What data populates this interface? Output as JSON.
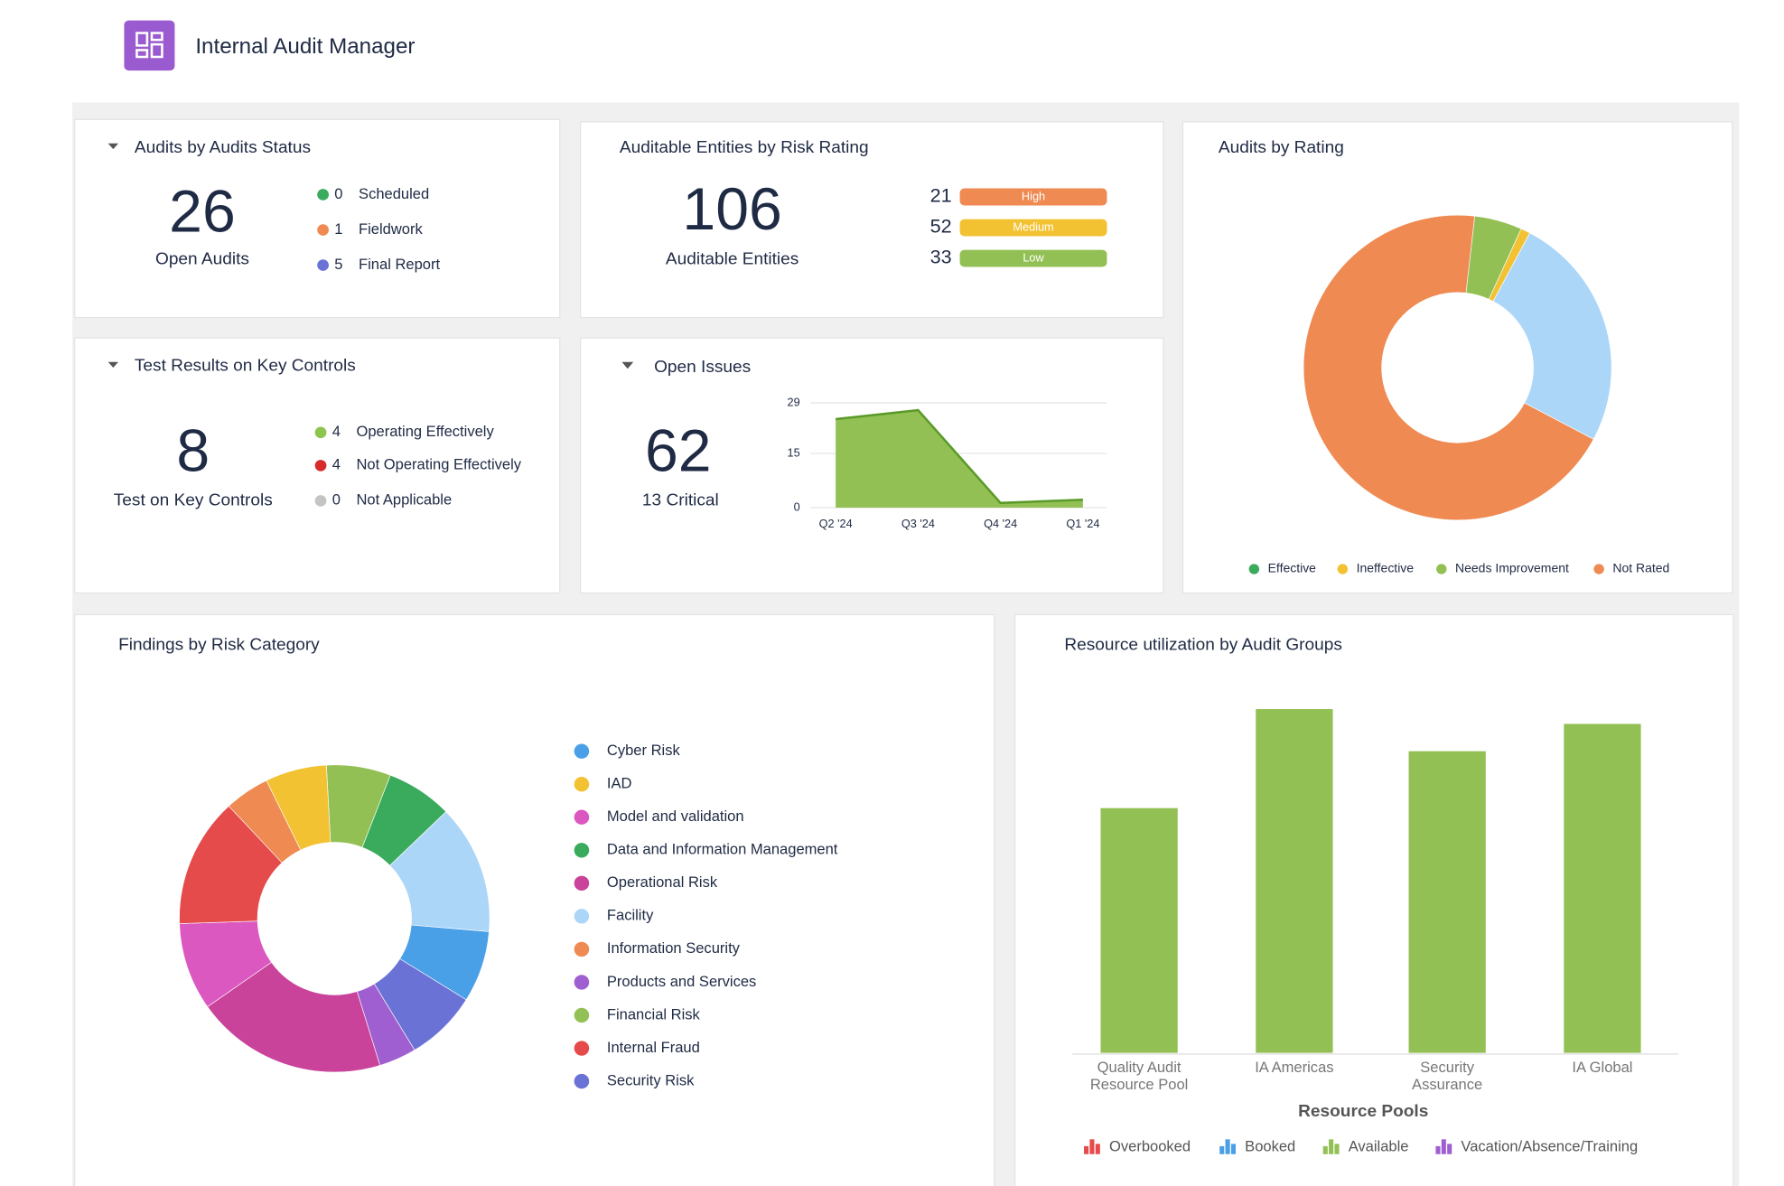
{
  "header": {
    "title": "Internal Audit Manager"
  },
  "audits_status": {
    "title": "Audits by Audits Status",
    "total": 26,
    "total_label": "Open Audits",
    "items": [
      {
        "count": 0,
        "label": "Scheduled",
        "color": "#3aaa5c"
      },
      {
        "count": 1,
        "label": "Fieldwork",
        "color": "#ef8a52"
      },
      {
        "count": 5,
        "label": "Final Report",
        "color": "#6b72d6"
      }
    ]
  },
  "risk_rating": {
    "title": "Auditable Entities by Risk Rating",
    "total": 106,
    "total_label": "Auditable Entities",
    "items": [
      {
        "count": 21,
        "label": "High",
        "color": "#ef8a52"
      },
      {
        "count": 52,
        "label": "Medium",
        "color": "#f2c232"
      },
      {
        "count": 33,
        "label": "Low",
        "color": "#93c054"
      }
    ]
  },
  "key_controls": {
    "title": "Test Results on Key Controls",
    "total": 8,
    "total_label": "Test on Key Controls",
    "items": [
      {
        "count": 4,
        "label": "Operating Effectively",
        "color": "#8cc44e"
      },
      {
        "count": 4,
        "label": "Not Operating Effectively",
        "color": "#d62b2b"
      },
      {
        "count": 0,
        "label": "Not Applicable",
        "color": "#c4c4c4"
      }
    ]
  },
  "open_issues": {
    "title": "Open Issues",
    "total": 62,
    "subtitle": "13 Critical",
    "chart": {
      "type": "area",
      "categories": [
        "Q2 '24",
        "Q3 '24",
        "Q4 '24",
        "Q1 '24"
      ],
      "values": [
        24.5,
        27,
        1.3,
        2.2
      ],
      "color": "#93c054",
      "ylim": [
        0,
        29
      ],
      "yticks": [
        0,
        15,
        29
      ],
      "grid": true
    }
  },
  "audits_by_rating": {
    "title": "Audits by Rating",
    "chart": {
      "type": "donut",
      "series": [
        {
          "name": "Effective",
          "color": "#3aaa5c",
          "value": 0
        },
        {
          "name": "Ineffective",
          "color": "#f2c232",
          "value": 1
        },
        {
          "name": "Needs Improvement",
          "color": "#93c054",
          "value": 5
        },
        {
          "name": "Not Rated",
          "color": "#ef8a52",
          "value": 69
        },
        {
          "name": null,
          "color": "#acd6f8",
          "value": 25
        }
      ]
    }
  },
  "findings": {
    "title": "Findings by Risk Category",
    "chart": {
      "type": "donut",
      "series": [
        {
          "name": "Cyber Risk",
          "color": "#4aa0e6",
          "value": 7.5
        },
        {
          "name": "IAD",
          "color": "#f2c232",
          "value": 6.4
        },
        {
          "name": "Model and validation",
          "color": "#db58c0",
          "value": 9.2
        },
        {
          "name": "Data and Information Management",
          "color": "#3aaa5c",
          "value": 6.9
        },
        {
          "name": "Operational Risk",
          "color": "#c9439b",
          "value": 20
        },
        {
          "name": "Facility",
          "color": "#acd6f8",
          "value": 13.6
        },
        {
          "name": "Information Security",
          "color": "#ef8a52",
          "value": 4.7
        },
        {
          "name": "Products and Services",
          "color": "#a05fd0",
          "value": 3.9
        },
        {
          "name": "Financial Risk",
          "color": "#93c054",
          "value": 6.7
        },
        {
          "name": "Internal Fraud",
          "color": "#e54b4b",
          "value": 13.6
        },
        {
          "name": "Security Risk",
          "color": "#6b72d6",
          "value": 7.5
        }
      ]
    }
  },
  "resources": {
    "title": "Resource utilization by Audit Groups",
    "chart": {
      "type": "bar",
      "x_label": "Resource Pools",
      "categories": [
        "Quality Audit Resource Pool",
        "IA Americas",
        "Security Assurance",
        "IA Global"
      ],
      "ylim": [
        0,
        320
      ],
      "series": [
        {
          "name": "Overbooked",
          "color": "#e54b4b",
          "values": [
            null,
            null,
            null,
            null
          ]
        },
        {
          "name": "Booked",
          "color": "#4aa0e6",
          "values": [
            null,
            null,
            null,
            null
          ]
        },
        {
          "name": "Available",
          "color": "#93c054",
          "values": [
            215,
            302,
            265,
            289
          ]
        },
        {
          "name": "Vacation/Absence/Training",
          "color": "#a05fd0",
          "values": [
            null,
            null,
            null,
            null
          ]
        }
      ]
    }
  }
}
